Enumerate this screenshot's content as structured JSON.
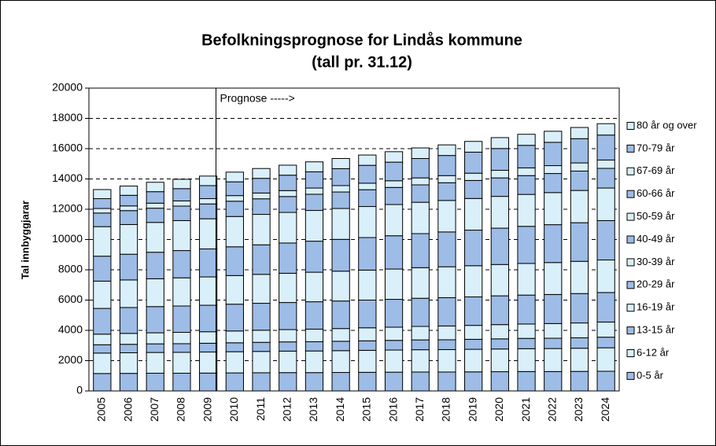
{
  "chart_data": {
    "type": "stacked_bar",
    "title": "Befolkningsprognose for Lindås kommune",
    "subtitle": "(tall pr. 31.12)",
    "y_label": "Tal innbyggjarar",
    "annotation": {
      "text": "Prognose ----->",
      "category": "2010"
    },
    "categories": [
      "2005",
      "2006",
      "2007",
      "2008",
      "2009",
      "2010",
      "2011",
      "2012",
      "2013",
      "2014",
      "2015",
      "2016",
      "2017",
      "2018",
      "2019",
      "2020",
      "2021",
      "2022",
      "2023",
      "2024"
    ],
    "ylim": [
      0,
      20000
    ],
    "yticks": [
      0,
      2000,
      4000,
      6000,
      8000,
      10000,
      12000,
      14000,
      16000,
      18000,
      20000
    ],
    "grid": true,
    "legend": "right",
    "series": [
      {
        "name": "0-5 år",
        "color": "#9dbce6",
        "values": [
          1150,
          1160,
          1170,
          1170,
          1180,
          1190,
          1200,
          1210,
          1210,
          1220,
          1230,
          1240,
          1250,
          1250,
          1260,
          1270,
          1280,
          1280,
          1290,
          1300
        ]
      },
      {
        "name": "6-12 år",
        "color": "#d9f0fa",
        "values": [
          1350,
          1360,
          1370,
          1380,
          1390,
          1400,
          1410,
          1420,
          1430,
          1440,
          1450,
          1460,
          1470,
          1480,
          1490,
          1500,
          1510,
          1520,
          1530,
          1550
        ]
      },
      {
        "name": "13-15 år",
        "color": "#9dbce6",
        "values": [
          550,
          560,
          570,
          570,
          580,
          590,
          600,
          610,
          610,
          620,
          630,
          640,
          650,
          650,
          660,
          670,
          680,
          680,
          690,
          700
        ]
      },
      {
        "name": "16-19 år",
        "color": "#d9f0fa",
        "values": [
          700,
          720,
          730,
          750,
          760,
          780,
          800,
          810,
          830,
          840,
          860,
          870,
          890,
          910,
          920,
          940,
          950,
          970,
          980,
          1000
        ]
      },
      {
        "name": "20-29 år",
        "color": "#9dbce6",
        "values": [
          1700,
          1710,
          1730,
          1740,
          1750,
          1770,
          1780,
          1790,
          1810,
          1820,
          1830,
          1840,
          1860,
          1870,
          1880,
          1900,
          1910,
          1920,
          1940,
          1950
        ]
      },
      {
        "name": "30-39 år",
        "color": "#d9f0fa",
        "values": [
          1800,
          1820,
          1840,
          1860,
          1870,
          1890,
          1910,
          1930,
          1950,
          1970,
          1980,
          2000,
          2020,
          2040,
          2060,
          2070,
          2090,
          2110,
          2130,
          2150
        ]
      },
      {
        "name": "40-49 år",
        "color": "#9dbce6",
        "values": [
          1650,
          1700,
          1750,
          1800,
          1850,
          1900,
          1950,
          2000,
          2050,
          2100,
          2150,
          2200,
          2250,
          2300,
          2350,
          2400,
          2450,
          2500,
          2550,
          2600
        ]
      },
      {
        "name": "50-59 år",
        "color": "#d9f0fa",
        "values": [
          1950,
          1960,
          1970,
          1980,
          1990,
          2000,
          2010,
          2020,
          2030,
          2040,
          2050,
          2060,
          2070,
          2080,
          2090,
          2100,
          2110,
          2120,
          2130,
          2150
        ]
      },
      {
        "name": "60-66 år",
        "color": "#9dbce6",
        "values": [
          900,
          920,
          940,
          960,
          980,
          1010,
          1030,
          1050,
          1070,
          1090,
          1110,
          1130,
          1150,
          1170,
          1190,
          1220,
          1240,
          1260,
          1280,
          1300
        ]
      },
      {
        "name": "67-69 år",
        "color": "#d9f0fa",
        "values": [
          300,
          310,
          330,
          340,
          350,
          370,
          380,
          390,
          410,
          420,
          430,
          440,
          460,
          470,
          480,
          500,
          510,
          520,
          540,
          550
        ]
      },
      {
        "name": "70-79 år",
        "color": "#9dbce6",
        "values": [
          650,
          700,
          760,
          810,
          860,
          910,
          970,
          1020,
          1070,
          1120,
          1180,
          1230,
          1280,
          1330,
          1390,
          1440,
          1490,
          1540,
          1600,
          1650
        ]
      },
      {
        "name": "80 år og over",
        "color": "#d9f0fa",
        "values": [
          600,
          610,
          620,
          620,
          630,
          640,
          650,
          660,
          660,
          670,
          680,
          690,
          700,
          700,
          710,
          720,
          730,
          730,
          740,
          750
        ]
      }
    ]
  }
}
